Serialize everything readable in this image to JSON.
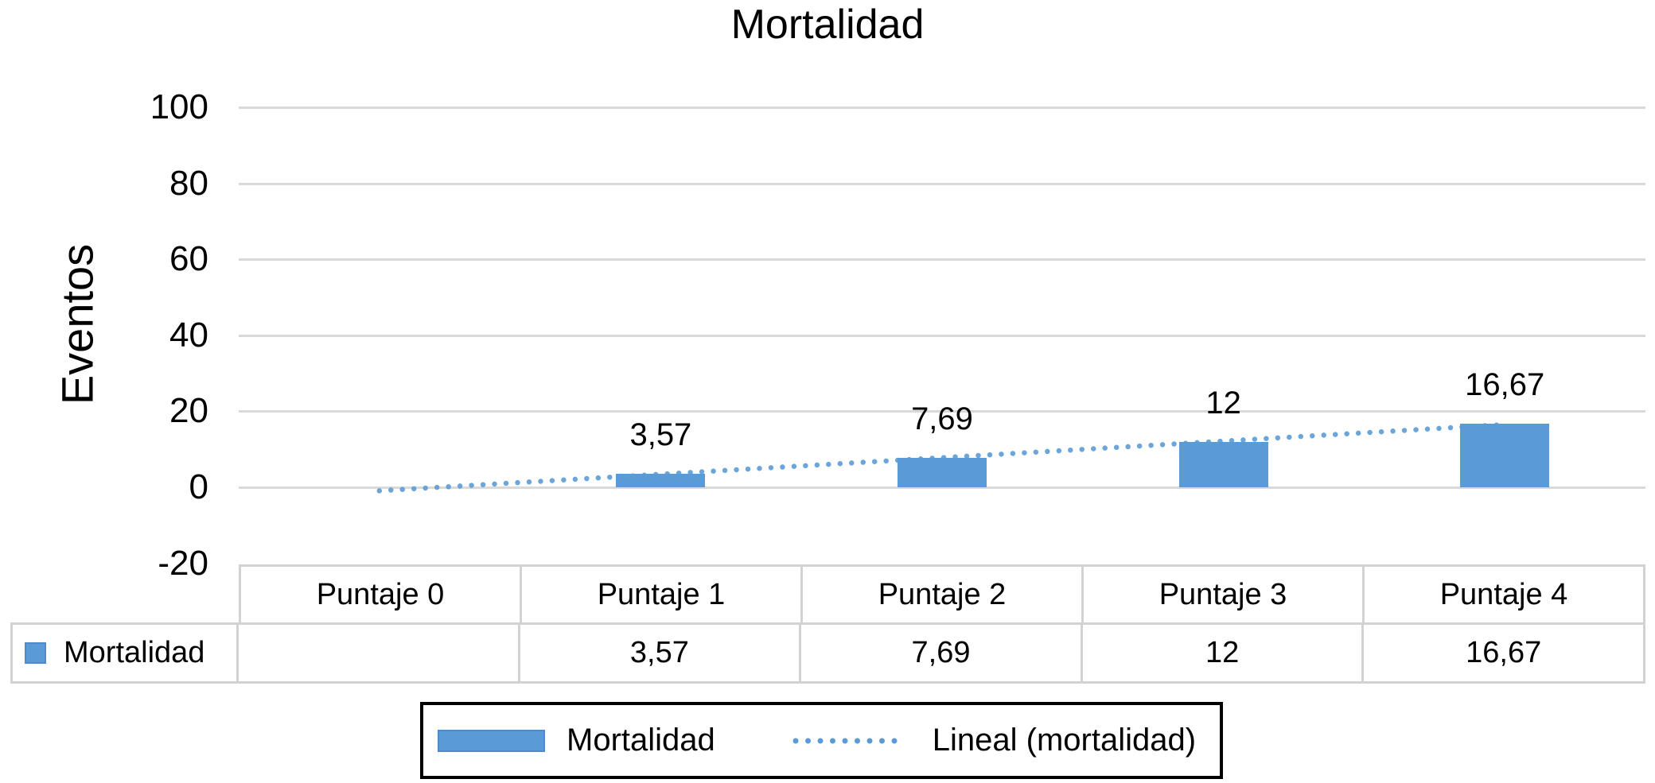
{
  "chart_data": {
    "type": "bar",
    "title": "Mortalidad",
    "ylabel": "Eventos",
    "categories": [
      "Puntaje 0",
      "Puntaje 1",
      "Puntaje 2",
      "Puntaje 3",
      "Puntaje 4"
    ],
    "series": [
      {
        "name": "Mortalidad",
        "values": [
          null,
          3.57,
          7.69,
          12,
          16.67
        ],
        "value_labels": [
          "",
          "3,57",
          "7,69",
          "12",
          "16,67"
        ]
      }
    ],
    "trendline": {
      "label": "Lineal (mortalidad)",
      "style": "dotted-linear"
    },
    "y_ticks": [
      100,
      80,
      60,
      40,
      20,
      0,
      -20
    ],
    "ylim": [
      -20,
      100
    ],
    "grid": true,
    "legend_position": "bottom",
    "show_data_table": true,
    "colors": {
      "bar_fill": "#5b9bd5",
      "bar_edge": "#4f8ac9",
      "trendline": "#5b9bd5",
      "gridline": "#d9d9d9",
      "table_border": "#d2d2d2",
      "legend_border": "#000000",
      "text": "#000000",
      "background": "#ffffff"
    }
  }
}
